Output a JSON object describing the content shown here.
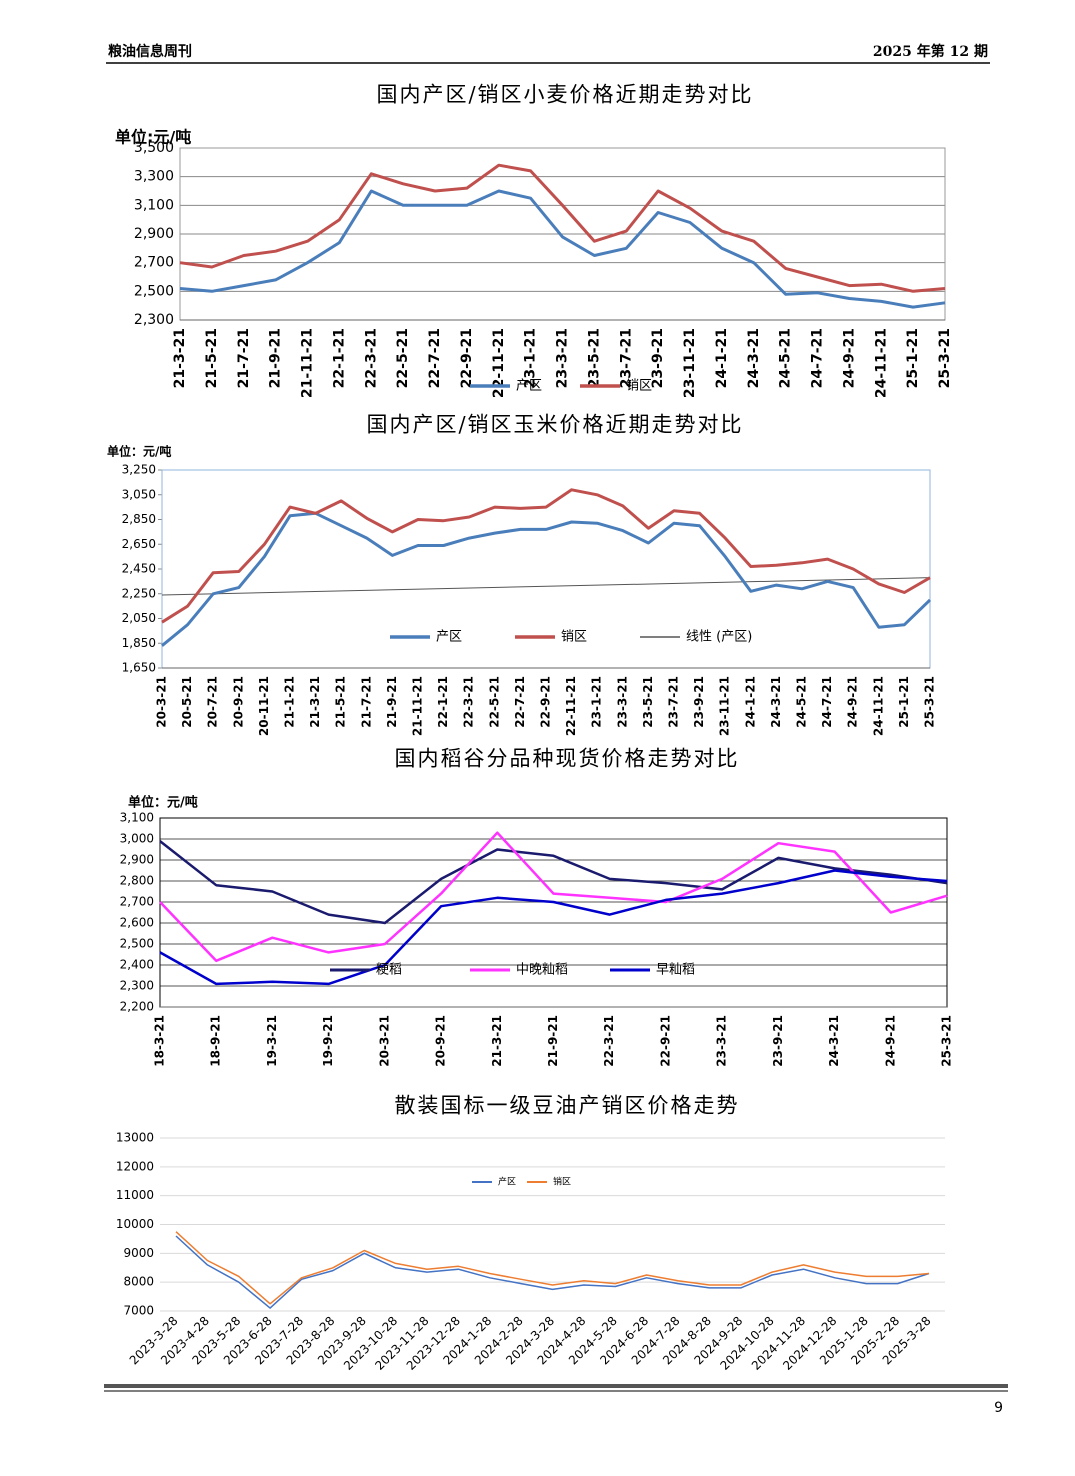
{
  "header": {
    "left": "粮油信息周刊",
    "right": "2025 年第 12 期"
  },
  "page_number": "9",
  "chart_data": [
    {
      "type": "line",
      "title": "国内产区/销区小麦价格近期走势对比",
      "unit": "单位:元/吨",
      "categories": [
        "21-3-21",
        "21-5-21",
        "21-7-21",
        "21-9-21",
        "21-11-21",
        "22-1-21",
        "22-3-21",
        "22-5-21",
        "22-7-21",
        "22-9-21",
        "22-11-21",
        "23-1-21",
        "23-3-21",
        "23-5-21",
        "23-7-21",
        "23-9-21",
        "23-11-21",
        "24-1-21",
        "24-3-21",
        "24-5-21",
        "24-7-21",
        "24-9-21",
        "24-11-21",
        "25-1-21",
        "25-3-21"
      ],
      "series": [
        {
          "name": "产区",
          "color": "#4a7ebb",
          "values": [
            2520,
            2500,
            2540,
            2580,
            2700,
            2840,
            3200,
            3100,
            3100,
            3100,
            3200,
            3150,
            2880,
            2750,
            2800,
            3050,
            2980,
            2800,
            2700,
            2480,
            2490,
            2450,
            2430,
            2390,
            2420
          ]
        },
        {
          "name": "销区",
          "color": "#c0504d",
          "values": [
            2700,
            2670,
            2750,
            2780,
            2850,
            3000,
            3320,
            3250,
            3200,
            3220,
            3380,
            3340,
            3100,
            2850,
            2920,
            3200,
            3080,
            2920,
            2850,
            2660,
            2600,
            2540,
            2550,
            2500,
            2520
          ]
        }
      ],
      "ylim": [
        2300,
        3500
      ],
      "yticks": [
        {
          "value": 2300,
          "label": "2,300"
        },
        {
          "value": 2500,
          "label": "2,500"
        },
        {
          "value": 2700,
          "label": "2,700"
        },
        {
          "value": 2900,
          "label": "2,900"
        },
        {
          "value": 3100,
          "label": "3,100"
        },
        {
          "value": 3300,
          "label": "3,300"
        },
        {
          "value": 3500,
          "label": "3,500"
        }
      ],
      "grid": true
    },
    {
      "type": "line",
      "title": "国内产区/销区玉米价格近期走势对比",
      "unit": "单位：元/吨",
      "categories": [
        "20-3-21",
        "20-5-21",
        "20-7-21",
        "20-9-21",
        "20-11-21",
        "21-1-21",
        "21-3-21",
        "21-5-21",
        "21-7-21",
        "21-9-21",
        "21-11-21",
        "22-1-21",
        "22-3-21",
        "22-5-21",
        "22-7-21",
        "22-9-21",
        "22-11-21",
        "23-1-21",
        "23-3-21",
        "23-5-21",
        "23-7-21",
        "23-9-21",
        "23-11-21",
        "24-1-21",
        "24-3-21",
        "24-5-21",
        "24-7-21",
        "24-9-21",
        "24-11-21",
        "25-1-21",
        "25-3-21"
      ],
      "series": [
        {
          "name": "产区",
          "color": "#4a7ebb",
          "values": [
            1830,
            2000,
            2250,
            2300,
            2550,
            2880,
            2900,
            2800,
            2700,
            2560,
            2640,
            2640,
            2700,
            2740,
            2770,
            2770,
            2830,
            2820,
            2760,
            2660,
            2820,
            2800,
            2550,
            2270,
            2320,
            2290,
            2350,
            2300,
            1980,
            2000,
            2200
          ]
        },
        {
          "name": "销区",
          "color": "#c0504d",
          "values": [
            2020,
            2150,
            2420,
            2430,
            2650,
            2950,
            2900,
            3000,
            2860,
            2750,
            2850,
            2840,
            2870,
            2950,
            2940,
            2950,
            3090,
            3050,
            2960,
            2780,
            2920,
            2900,
            2700,
            2470,
            2480,
            2500,
            2530,
            2450,
            2330,
            2260,
            2380
          ]
        }
      ],
      "trendline": {
        "name": "线性 (产区)",
        "color": "#555555",
        "values": [
          2240,
          2380
        ]
      },
      "ylim": [
        1650,
        3250
      ],
      "yticks": [
        {
          "value": 1650,
          "label": "1,650"
        },
        {
          "value": 1850,
          "label": "1,850"
        },
        {
          "value": 2050,
          "label": "2,050"
        },
        {
          "value": 2250,
          "label": "2,250"
        },
        {
          "value": 2450,
          "label": "2,450"
        },
        {
          "value": 2650,
          "label": "2,650"
        },
        {
          "value": 2850,
          "label": "2,850"
        },
        {
          "value": 3050,
          "label": "3,050"
        },
        {
          "value": 3250,
          "label": "3,250"
        }
      ],
      "grid": false
    },
    {
      "type": "line",
      "title": "国内稻谷分品种现货价格走势对比",
      "unit": "单位：元/吨",
      "categories": [
        "18-3-21",
        "18-9-21",
        "19-3-21",
        "19-9-21",
        "20-3-21",
        "20-9-21",
        "21-3-21",
        "21-9-21",
        "22-3-21",
        "22-9-21",
        "23-3-21",
        "23-9-21",
        "24-3-21",
        "24-9-21",
        "25-3-21"
      ],
      "series": [
        {
          "name": "粳稻",
          "color": "#1a1a6e",
          "values": [
            2990,
            2780,
            2750,
            2640,
            2600,
            2810,
            2950,
            2920,
            2810,
            2790,
            2760,
            2910,
            2860,
            2830,
            2790
          ]
        },
        {
          "name": "中晚籼稻",
          "color": "#ff33ff",
          "values": [
            2700,
            2420,
            2530,
            2460,
            2500,
            2740,
            3030,
            2740,
            2720,
            2700,
            2810,
            2980,
            2940,
            2650,
            2730
          ]
        },
        {
          "name": "早籼稻",
          "color": "#0000cc",
          "values": [
            2460,
            2310,
            2320,
            2310,
            2400,
            2680,
            2720,
            2700,
            2640,
            2710,
            2740,
            2790,
            2850,
            2820,
            2800
          ]
        }
      ],
      "ylim": [
        2200,
        3100
      ],
      "yticks": [
        {
          "value": 2200,
          "label": "2,200"
        },
        {
          "value": 2300,
          "label": "2,300"
        },
        {
          "value": 2400,
          "label": "2,400"
        },
        {
          "value": 2500,
          "label": "2,500"
        },
        {
          "value": 2600,
          "label": "2,600"
        },
        {
          "value": 2700,
          "label": "2,700"
        },
        {
          "value": 2800,
          "label": "2,800"
        },
        {
          "value": 2900,
          "label": "2,900"
        },
        {
          "value": 3000,
          "label": "3,000"
        },
        {
          "value": 3100,
          "label": "3,100"
        }
      ],
      "grid": true
    },
    {
      "type": "line",
      "title": "散装国标一级豆油产销区价格走势",
      "categories": [
        "2023-3-28",
        "2023-4-28",
        "2023-5-28",
        "2023-6-28",
        "2023-7-28",
        "2023-8-28",
        "2023-9-28",
        "2023-10-28",
        "2023-11-28",
        "2023-12-28",
        "2024-1-28",
        "2024-2-28",
        "2024-3-28",
        "2024-4-28",
        "2024-5-28",
        "2024-6-28",
        "2024-7-28",
        "2024-8-28",
        "2024-9-28",
        "2024-10-28",
        "2024-11-28",
        "2024-12-28",
        "2025-1-28",
        "2025-2-28",
        "2025-3-28"
      ],
      "series": [
        {
          "name": "产区",
          "color": "#4472c4",
          "values": [
            9600,
            8600,
            8000,
            7100,
            8100,
            8400,
            9000,
            8500,
            8350,
            8450,
            8150,
            7950,
            7750,
            7900,
            7850,
            8150,
            7950,
            7800,
            7800,
            8250,
            8450,
            8150,
            7950,
            7950,
            8300
          ]
        },
        {
          "name": "销区",
          "color": "#ed7d31",
          "values": [
            9750,
            8750,
            8200,
            7250,
            8150,
            8500,
            9100,
            8650,
            8450,
            8550,
            8300,
            8100,
            7900,
            8050,
            7950,
            8250,
            8050,
            7900,
            7900,
            8350,
            8600,
            8350,
            8200,
            8200,
            8300
          ]
        }
      ],
      "ylim": [
        7000,
        13000
      ],
      "yticks": [
        7000,
        8000,
        9000,
        10000,
        11000,
        12000,
        13000
      ],
      "grid": true
    }
  ]
}
